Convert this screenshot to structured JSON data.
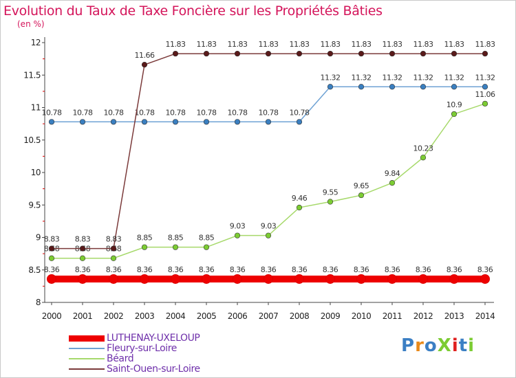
{
  "chart_data": {
    "type": "line",
    "title": "Evolution du Taux de Taxe Foncière sur les Propriétés Bâties",
    "ylabel": "(en %)",
    "xlabel": "",
    "categories": [
      "2000",
      "2001",
      "2002",
      "2003",
      "2004",
      "2005",
      "2006",
      "2007",
      "2008",
      "2009",
      "2010",
      "2011",
      "2012",
      "2013",
      "2014"
    ],
    "ylim": [
      8,
      12
    ],
    "yticks": [
      8,
      8.5,
      9,
      9.5,
      10,
      10.5,
      11,
      11.5,
      12
    ],
    "ytick_labels": [
      "8",
      "8.5",
      "9",
      "9.5",
      "10",
      "10.5",
      "11",
      "11.5",
      "12"
    ],
    "grid": false,
    "legend_position": "bottom-left",
    "series": [
      {
        "name": "LUTHENAY-UXELOUP",
        "color": "#ee0000",
        "marker_color": "#ee0000",
        "values": [
          8.36,
          8.36,
          8.36,
          8.36,
          8.36,
          8.36,
          8.36,
          8.36,
          8.36,
          8.36,
          8.36,
          8.36,
          8.36,
          8.36,
          8.36
        ],
        "labels": [
          "8.36",
          "8.36",
          "8.36",
          "8.36",
          "8.36",
          "8.36",
          "8.36",
          "8.36",
          "8.36",
          "8.36",
          "8.36",
          "8.36",
          "8.36",
          "8.36",
          "8.36"
        ]
      },
      {
        "name": "Fleury-sur-Loire",
        "color": "#6ea2d4",
        "marker_color": "#3a7fc0",
        "values": [
          10.78,
          10.78,
          10.78,
          10.78,
          10.78,
          10.78,
          10.78,
          10.78,
          10.78,
          11.32,
          11.32,
          11.32,
          11.32,
          11.32,
          11.32
        ],
        "labels": [
          "10.78",
          "10.78",
          "10.78",
          "10.78",
          "10.78",
          "10.78",
          "10.78",
          "10.78",
          "10.78",
          "11.32",
          "11.32",
          "11.32",
          "11.32",
          "11.32",
          "11.32"
        ]
      },
      {
        "name": "Béard",
        "color": "#a6d96a",
        "marker_color": "#7ccc33",
        "values": [
          8.68,
          8.68,
          8.68,
          8.85,
          8.85,
          8.85,
          9.03,
          9.03,
          9.46,
          9.55,
          9.65,
          9.84,
          10.23,
          10.9,
          11.06
        ],
        "labels": [
          "8.68",
          "8.68",
          "8.68",
          "8.85",
          "8.85",
          "8.85",
          "9.03",
          "9.03",
          "9.46",
          "9.55",
          "9.65",
          "9.84",
          "10.23",
          "10.9",
          "11.06"
        ]
      },
      {
        "name": "Saint-Ouen-sur-Loire",
        "color": "#7b3a3a",
        "marker_color": "#5a1a1a",
        "values": [
          8.83,
          8.83,
          8.83,
          11.66,
          11.83,
          11.83,
          11.83,
          11.83,
          11.83,
          11.83,
          11.83,
          11.83,
          11.83,
          11.83,
          11.83
        ],
        "labels": [
          "8.83",
          "8.83",
          "8.83",
          "11.66",
          "11.83",
          "11.83",
          "11.83",
          "11.83",
          "11.83",
          "11.83",
          "11.83",
          "11.83",
          "11.83",
          "11.83",
          "11.83"
        ]
      }
    ]
  },
  "logo": {
    "text": "ProXiti"
  }
}
